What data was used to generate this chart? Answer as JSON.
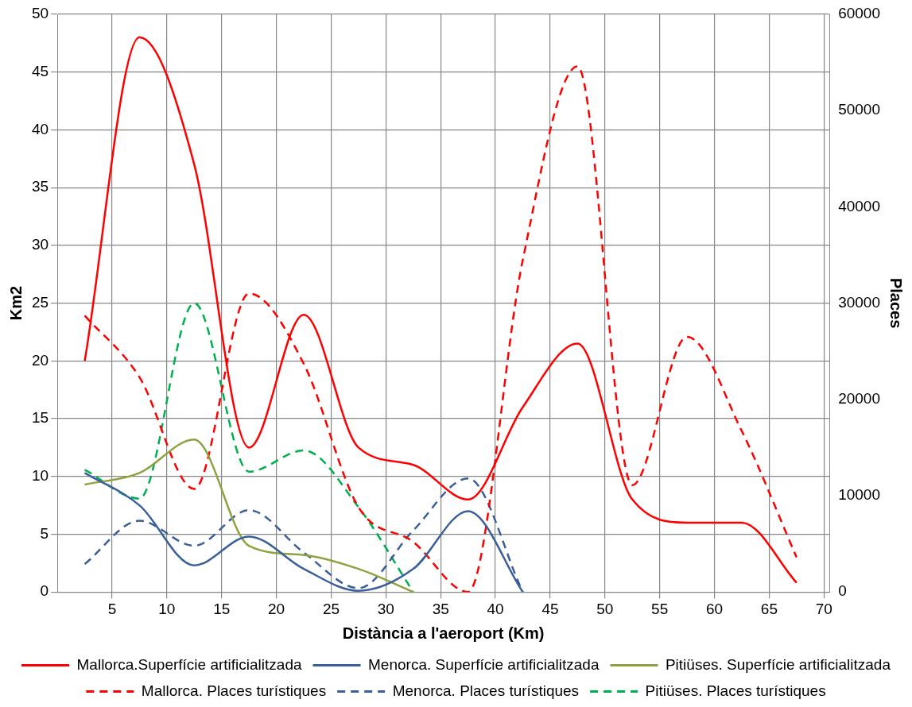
{
  "chart_data": {
    "type": "line",
    "xlabel": "Distància a l'aeroport (Km)",
    "ylabel": "Km2",
    "y2label": "Places",
    "x": [
      2.5,
      7.5,
      12.5,
      17.5,
      22.5,
      27.5,
      32.5,
      37.5,
      42.5,
      47.5,
      52.5,
      57.5,
      62.5,
      67.5
    ],
    "xlim": [
      0,
      70.5
    ],
    "xticks": [
      5,
      10,
      15,
      20,
      25,
      30,
      35,
      40,
      45,
      50,
      55,
      60,
      65,
      70
    ],
    "ylim": [
      0,
      50
    ],
    "yticks": [
      0,
      5,
      10,
      15,
      20,
      25,
      30,
      35,
      40,
      45,
      50
    ],
    "y2lim": [
      0,
      60000
    ],
    "y2ticks": [
      0,
      10000,
      20000,
      30000,
      40000,
      50000,
      60000
    ],
    "grid": true,
    "legend": "bottom",
    "marker": "none",
    "series": [
      {
        "name": "Mallorca.Superfície artificialitzada",
        "color": "#ff0000",
        "line_style": "solid",
        "values": [
          20,
          48,
          37,
          12.5,
          24,
          12.5,
          11,
          8,
          16,
          21.5,
          8,
          6,
          6,
          0.8
        ]
      },
      {
        "name": "Menorca. Superfície artificialitzada",
        "color": "#3a5f9a",
        "line_style": "solid",
        "values": [
          10.3,
          7.5,
          2.3,
          4.8,
          2,
          0.1,
          2,
          7,
          0,
          null,
          null,
          null,
          null,
          null
        ]
      },
      {
        "name": "Pitiüses. Superfície artificialitzada",
        "color": "#8ea33f",
        "line_style": "solid",
        "values": [
          9.3,
          10.3,
          13.2,
          4,
          3.2,
          2,
          0,
          null,
          null,
          null,
          null,
          null,
          null,
          null
        ]
      },
      {
        "name": "Mallorca. Places turístiques",
        "color": "#ff0000",
        "line_style": "dashed",
        "axis": "y2",
        "values": [
          28700,
          22300,
          10700,
          31000,
          23700,
          8800,
          5200,
          0,
          34500,
          54600,
          11100,
          26500,
          16700,
          3600
        ]
      },
      {
        "name": "Menorca. Places turístiques",
        "color": "#3a5f9a",
        "line_style": "dashed",
        "axis": "y2",
        "values": [
          2900,
          7400,
          4800,
          8500,
          4100,
          400,
          6400,
          11800,
          0,
          null,
          null,
          null,
          null,
          null
        ]
      },
      {
        "name": "Pitiüses. Places turístiques",
        "color": "#00b050",
        "line_style": "dashed",
        "axis": "y2",
        "values": [
          12700,
          9700,
          30000,
          12500,
          14700,
          8800,
          0,
          null,
          null,
          null,
          null,
          null,
          null,
          null
        ]
      }
    ]
  }
}
